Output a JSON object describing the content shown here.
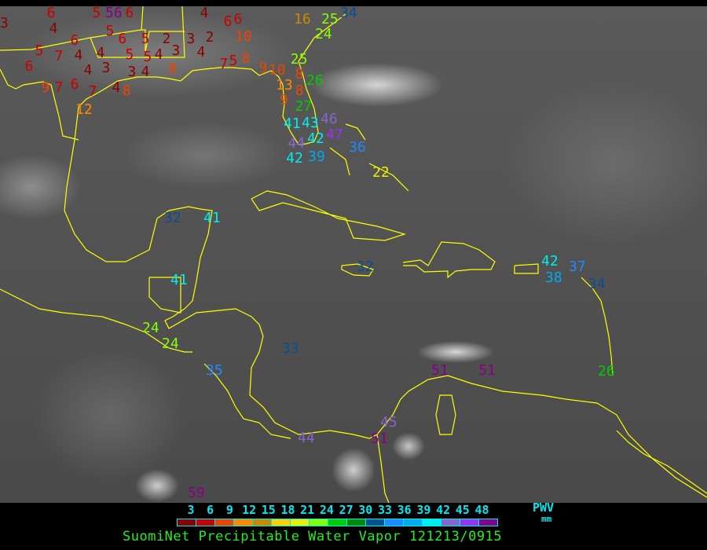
{
  "legend": {
    "ticks": [
      "3",
      "6",
      "9",
      "12",
      "15",
      "18",
      "21",
      "24",
      "27",
      "30",
      "33",
      "36",
      "39",
      "42",
      "45",
      "48"
    ],
    "units_line1": "PWV",
    "units_line2": "mm",
    "colors": [
      "#8b0000",
      "#cc0000",
      "#ee4400",
      "#ff8800",
      "#cc8800",
      "#ffd000",
      "#eeee00",
      "#88ff00",
      "#00cc00",
      "#008800",
      "#0a4e90",
      "#2288ff",
      "#00aaee",
      "#00eeee",
      "#8866cc",
      "#9933ee",
      "#880088"
    ],
    "caption": "SuomiNet Precipitable Water Vapor 121213/0915"
  },
  "map": {
    "coastline_color": "#ffff00",
    "labels": [
      "3",
      "6",
      "5",
      "56",
      "6",
      "4",
      "6",
      "5",
      "7",
      "4",
      "4",
      "6",
      "4",
      "3",
      "5",
      "6",
      "5",
      "5",
      "5",
      "3",
      "4",
      "2",
      "4",
      "3",
      "3",
      "4",
      "8",
      "2",
      "4",
      "6",
      "6",
      "10",
      "5",
      "8",
      "7",
      "9",
      "10",
      "13",
      "8",
      "8",
      "9",
      "9",
      "7",
      "6",
      "7",
      "4",
      "8",
      "12",
      "16",
      "25",
      "34",
      "24",
      "25",
      "26",
      "27",
      "43",
      "46",
      "41",
      "42",
      "44",
      "47",
      "39",
      "42",
      "36",
      "22",
      "32",
      "41",
      "41",
      "24",
      "24",
      "35",
      "33",
      "32",
      "44",
      "45",
      "51",
      "59",
      "51",
      "51",
      "42",
      "38",
      "37",
      "34",
      "26"
    ]
  }
}
